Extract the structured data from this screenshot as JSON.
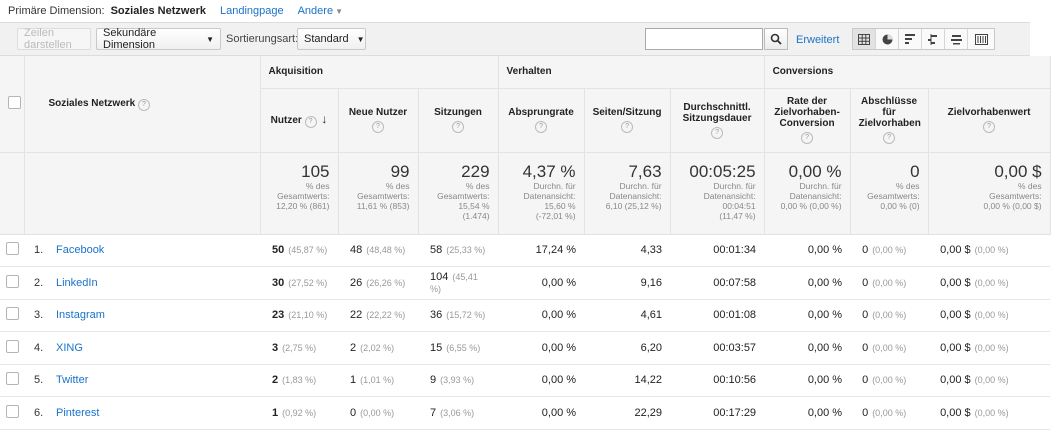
{
  "dimension_bar": {
    "label": "Primäre Dimension:",
    "current": "Soziales Netzwerk",
    "links": [
      "Landingpage",
      "Andere"
    ]
  },
  "toolbar": {
    "show_rows": "Zeilen darstellen",
    "secondary_dimension": "Sekundäre Dimension",
    "sort_label": "Sortierungsart:",
    "sort_value": "Standard",
    "search_value": "",
    "advanced": "Erweitert"
  },
  "table": {
    "dimension_header": "Soziales Netzwerk",
    "groups": [
      "Akquisition",
      "Verhalten",
      "Conversions"
    ],
    "columns": [
      "Nutzer",
      "Neue Nutzer",
      "Sitzungen",
      "Absprungrate",
      "Seiten/Sitzung",
      "Durchschnittl. Sitzungsdauer",
      "Rate der Zielvorhaben-Conversion",
      "Abschlüsse für Zielvorhaben",
      "Zielvorhabenwert"
    ],
    "totals": [
      {
        "value": "105",
        "l1": "% des",
        "l2": "Gesamtwerts:",
        "l3": "12,20 % (861)",
        "l4": ""
      },
      {
        "value": "99",
        "l1": "% des",
        "l2": "Gesamtwerts:",
        "l3": "11,61 % (853)",
        "l4": ""
      },
      {
        "value": "229",
        "l1": "% des",
        "l2": "Gesamtwerts:",
        "l3": "15,54 %",
        "l4": "(1.474)"
      },
      {
        "value": "4,37 %",
        "l1": "Durchn. für",
        "l2": "Datenansicht:",
        "l3": "15,60 %",
        "l4": "(-72,01 %)"
      },
      {
        "value": "7,63",
        "l1": "Durchn. für",
        "l2": "Datenansicht:",
        "l3": "6,10 (25,12 %)",
        "l4": ""
      },
      {
        "value": "00:05:25",
        "l1": "Durchn. für",
        "l2": "Datenansicht:",
        "l3": "00:04:51",
        "l4": "(11,47 %)"
      },
      {
        "value": "0,00 %",
        "l1": "Durchn. für",
        "l2": "Datenansicht:",
        "l3": "0,00 % (0,00 %)",
        "l4": ""
      },
      {
        "value": "0",
        "l1": "% des",
        "l2": "Gesamtwerts:",
        "l3": "0,00 % (0)",
        "l4": ""
      },
      {
        "value": "0,00 $",
        "l1": "% des",
        "l2": "Gesamtwerts:",
        "l3": "0,00 % (0,00 $)",
        "l4": ""
      }
    ],
    "rows": [
      {
        "rank": "1.",
        "name": "Facebook",
        "nutzer": "50",
        "nutzer_pct": "(45,87 %)",
        "neue": "48",
        "neue_pct": "(48,48 %)",
        "sitzungen": "58",
        "sitzungen_pct": "(25,33 %)",
        "absprung": "17,24 %",
        "seiten": "4,33",
        "dauer": "00:01:34",
        "rate": "0,00 %",
        "abschl": "0",
        "abschl_pct": "(0,00 %)",
        "wert": "0,00 $",
        "wert_pct": "(0,00 %)"
      },
      {
        "rank": "2.",
        "name": "LinkedIn",
        "nutzer": "30",
        "nutzer_pct": "(27,52 %)",
        "neue": "26",
        "neue_pct": "(26,26 %)",
        "sitzungen": "104",
        "sitzungen_pct": "(45,41 %)",
        "absprung": "0,00 %",
        "seiten": "9,16",
        "dauer": "00:07:58",
        "rate": "0,00 %",
        "abschl": "0",
        "abschl_pct": "(0,00 %)",
        "wert": "0,00 $",
        "wert_pct": "(0,00 %)"
      },
      {
        "rank": "3.",
        "name": "Instagram",
        "nutzer": "23",
        "nutzer_pct": "(21,10 %)",
        "neue": "22",
        "neue_pct": "(22,22 %)",
        "sitzungen": "36",
        "sitzungen_pct": "(15,72 %)",
        "absprung": "0,00 %",
        "seiten": "4,61",
        "dauer": "00:01:08",
        "rate": "0,00 %",
        "abschl": "0",
        "abschl_pct": "(0,00 %)",
        "wert": "0,00 $",
        "wert_pct": "(0,00 %)"
      },
      {
        "rank": "4.",
        "name": "XING",
        "nutzer": "3",
        "nutzer_pct": "(2,75 %)",
        "neue": "2",
        "neue_pct": "(2,02 %)",
        "sitzungen": "15",
        "sitzungen_pct": "(6,55 %)",
        "absprung": "0,00 %",
        "seiten": "6,20",
        "dauer": "00:03:57",
        "rate": "0,00 %",
        "abschl": "0",
        "abschl_pct": "(0,00 %)",
        "wert": "0,00 $",
        "wert_pct": "(0,00 %)"
      },
      {
        "rank": "5.",
        "name": "Twitter",
        "nutzer": "2",
        "nutzer_pct": "(1,83 %)",
        "neue": "1",
        "neue_pct": "(1,01 %)",
        "sitzungen": "9",
        "sitzungen_pct": "(3,93 %)",
        "absprung": "0,00 %",
        "seiten": "14,22",
        "dauer": "00:10:56",
        "rate": "0,00 %",
        "abschl": "0",
        "abschl_pct": "(0,00 %)",
        "wert": "0,00 $",
        "wert_pct": "(0,00 %)"
      },
      {
        "rank": "6.",
        "name": "Pinterest",
        "nutzer": "1",
        "nutzer_pct": "(0,92 %)",
        "neue": "0",
        "neue_pct": "(0,00 %)",
        "sitzungen": "7",
        "sitzungen_pct": "(3,06 %)",
        "absprung": "0,00 %",
        "seiten": "22,29",
        "dauer": "00:17:29",
        "rate": "0,00 %",
        "abschl": "0",
        "abschl_pct": "(0,00 %)",
        "wert": "0,00 $",
        "wert_pct": "(0,00 %)"
      }
    ]
  },
  "colors": {
    "link": "#1a73c8",
    "header_bg": "#f5f5f5"
  },
  "icons": [
    "help-icon",
    "sort-descending-icon",
    "search-icon",
    "table-view-icon",
    "pie-view-icon",
    "performance-view-icon",
    "comparison-view-icon",
    "term-cloud-view-icon",
    "pivot-view-icon",
    "dropdown-caret-icon"
  ]
}
